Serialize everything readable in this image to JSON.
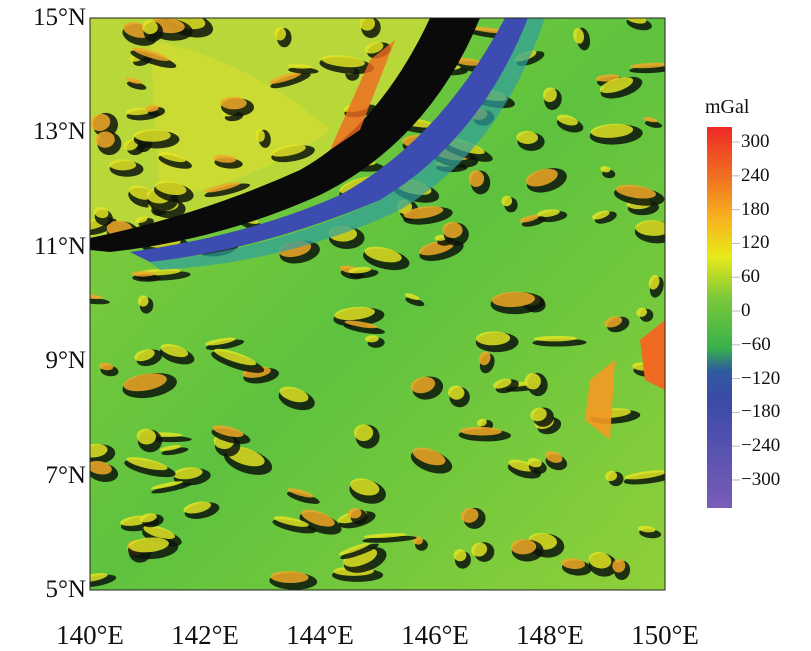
{
  "map": {
    "y_axis_labels": [
      "15°N",
      "13°N",
      "11°N",
      "9°N",
      "7°N",
      "5°N"
    ],
    "x_axis_labels": [
      "140°E",
      "142°E",
      "144°E",
      "146°E",
      "148°E",
      "150°E"
    ],
    "lat_range": [
      5,
      15
    ],
    "lon_range": [
      140,
      150
    ]
  },
  "colorbar": {
    "unit": "mGal",
    "ticks": [
      "300",
      "240",
      "180",
      "120",
      "60",
      "0",
      "−60",
      "−120",
      "−180",
      "−240",
      "−300"
    ],
    "range": [
      -340,
      330
    ],
    "colors": [
      "#7a5cb8",
      "#3b4aa8",
      "#2d48a8",
      "#36b24a",
      "#6cc43a",
      "#e8ea1a",
      "#f7b21e",
      "#f06a22",
      "#ee2a26"
    ]
  }
}
